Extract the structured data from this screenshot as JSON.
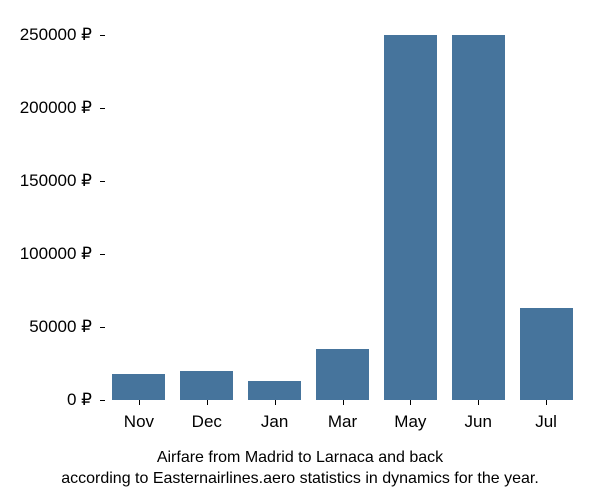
{
  "chart": {
    "type": "bar",
    "categories": [
      "Nov",
      "Dec",
      "Jan",
      "Mar",
      "May",
      "Jun",
      "Jul"
    ],
    "values": [
      18000,
      20000,
      13000,
      35000,
      250000,
      250000,
      63000
    ],
    "bar_color": "#46749c",
    "background_color": "#ffffff",
    "y_ticks": [
      0,
      50000,
      100000,
      150000,
      200000,
      250000
    ],
    "y_tick_labels": [
      "0 ₽",
      "50000 ₽",
      "100000 ₽",
      "150000 ₽",
      "200000 ₽",
      "250000 ₽"
    ],
    "ylim": [
      0,
      260000
    ],
    "bar_width_ratio": 0.78,
    "tick_fontsize": 17,
    "caption_fontsize": 16,
    "tick_color": "#000000",
    "caption_line1": "Airfare from Madrid to Larnaca and back",
    "caption_line2": "according to Easternairlines.aero statistics in dynamics for the year."
  }
}
